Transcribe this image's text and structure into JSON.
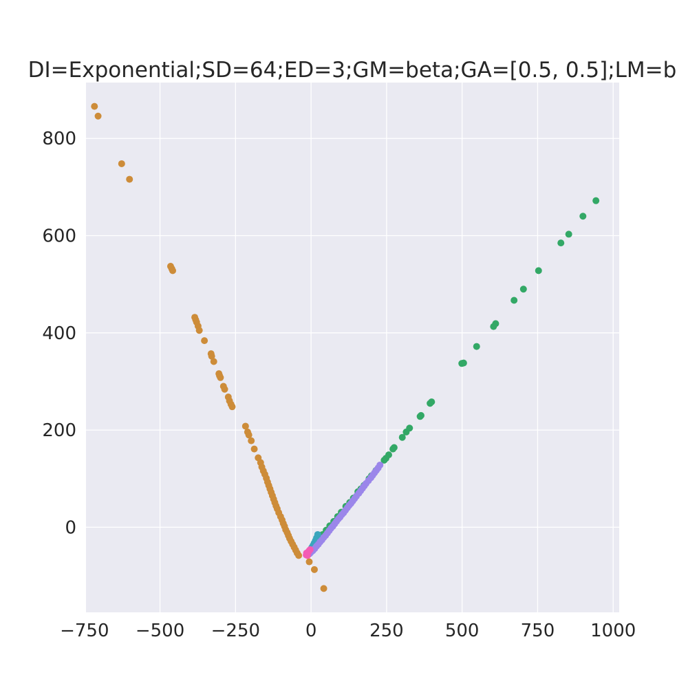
{
  "chart_data": {
    "type": "scatter",
    "title": "DI=Exponential;SD=64;ED=3;GM=beta;GA=[0.5, 0.5];LM=b",
    "xlabel": "",
    "ylabel": "",
    "xlim": [
      -745,
      1020
    ],
    "ylim": [
      -175,
      915
    ],
    "grid": true,
    "background": "#eaeaf2",
    "grid_color": "#ffffff",
    "x_ticks": [
      -750,
      -500,
      -250,
      0,
      250,
      500,
      750,
      1000
    ],
    "x_tick_labels": [
      "−750",
      "−500",
      "−250",
      "0",
      "250",
      "500",
      "750",
      "1000"
    ],
    "y_ticks": [
      0,
      200,
      400,
      600,
      800
    ],
    "y_tick_labels": [
      "0",
      "200",
      "400",
      "600",
      "800"
    ],
    "series": [
      {
        "color": "#cd8c39",
        "points": [
          [
            -717,
            866
          ],
          [
            -705,
            846
          ],
          [
            -627,
            748
          ],
          [
            -601,
            716
          ],
          [
            -465,
            537
          ],
          [
            -461,
            532
          ],
          [
            -458,
            528
          ],
          [
            -385,
            432
          ],
          [
            -382,
            427
          ],
          [
            -379,
            422
          ],
          [
            -374,
            414
          ],
          [
            -370,
            405
          ],
          [
            -353,
            384
          ],
          [
            -331,
            357
          ],
          [
            -329,
            352
          ],
          [
            -322,
            341
          ],
          [
            -305,
            316
          ],
          [
            -303,
            312
          ],
          [
            -300,
            308
          ],
          [
            -290,
            290
          ],
          [
            -286,
            284
          ],
          [
            -274,
            268
          ],
          [
            -270,
            260
          ],
          [
            -265,
            253
          ],
          [
            -261,
            248
          ],
          [
            -217,
            208
          ],
          [
            -210,
            196
          ],
          [
            -206,
            190
          ],
          [
            -198,
            178
          ],
          [
            -188,
            161
          ],
          [
            -175,
            143
          ],
          [
            -167,
            133
          ],
          [
            -163,
            124
          ],
          [
            -158,
            116
          ],
          [
            -153,
            109
          ],
          [
            -148,
            101
          ],
          [
            -144,
            93
          ],
          [
            -140,
            86
          ],
          [
            -136,
            79
          ],
          [
            -132,
            72
          ],
          [
            -128,
            65
          ],
          [
            -124,
            58
          ],
          [
            -120,
            51
          ],
          [
            -116,
            44
          ],
          [
            -112,
            38
          ],
          [
            -107,
            30
          ],
          [
            -101,
            22
          ],
          [
            -96,
            15
          ],
          [
            -92,
            8
          ],
          [
            -88,
            2
          ],
          [
            -84,
            -5
          ],
          [
            -79,
            -11
          ],
          [
            -75,
            -17
          ],
          [
            -71,
            -23
          ],
          [
            -66,
            -29
          ],
          [
            -61,
            -35
          ],
          [
            -56,
            -41
          ],
          [
            -51,
            -47
          ],
          [
            -46,
            -53
          ],
          [
            -41,
            -58
          ],
          [
            -6,
            -71
          ],
          [
            11,
            -87
          ],
          [
            42,
            -126
          ]
        ]
      },
      {
        "color": "#33a866",
        "points": [
          [
            943,
            672
          ],
          [
            900,
            640
          ],
          [
            853,
            603
          ],
          [
            827,
            585
          ],
          [
            753,
            528
          ],
          [
            703,
            490
          ],
          [
            672,
            467
          ],
          [
            611,
            419
          ],
          [
            604,
            413
          ],
          [
            548,
            372
          ],
          [
            505,
            338
          ],
          [
            499,
            337
          ],
          [
            399,
            258
          ],
          [
            394,
            255
          ],
          [
            364,
            230
          ],
          [
            361,
            228
          ],
          [
            326,
            204
          ],
          [
            315,
            196
          ],
          [
            302,
            185
          ],
          [
            275,
            164
          ],
          [
            271,
            161
          ],
          [
            257,
            149
          ],
          [
            248,
            142
          ],
          [
            242,
            138
          ],
          [
            215,
            117
          ],
          [
            200,
            106
          ],
          [
            192,
            100
          ],
          [
            175,
            86
          ],
          [
            165,
            79
          ],
          [
            155,
            73
          ],
          [
            140,
            60
          ],
          [
            128,
            51
          ],
          [
            115,
            43
          ],
          [
            100,
            31
          ],
          [
            88,
            22
          ],
          [
            75,
            12
          ],
          [
            62,
            3
          ],
          [
            50,
            -6
          ],
          [
            38,
            -15
          ],
          [
            25,
            -25
          ],
          [
            12,
            -35
          ],
          [
            0,
            -45
          ]
        ]
      },
      {
        "color": "#3aa6bc",
        "points": [
          [
            22,
            -15
          ],
          [
            18,
            -22
          ],
          [
            14,
            -28
          ],
          [
            10,
            -33
          ],
          [
            6,
            -38
          ],
          [
            2,
            -42
          ],
          [
            -2,
            -46
          ],
          [
            -6,
            -50
          ],
          [
            -10,
            -54
          ],
          [
            -14,
            -57
          ]
        ]
      },
      {
        "color": "#9b86ea",
        "points": [
          [
            228,
            128
          ],
          [
            222,
            122
          ],
          [
            216,
            117
          ],
          [
            210,
            112
          ],
          [
            204,
            107
          ],
          [
            198,
            102
          ],
          [
            190,
            96
          ],
          [
            182,
            90
          ],
          [
            176,
            85
          ],
          [
            170,
            80
          ],
          [
            164,
            75
          ],
          [
            158,
            70
          ],
          [
            150,
            64
          ],
          [
            144,
            59
          ],
          [
            138,
            54
          ],
          [
            132,
            49
          ],
          [
            126,
            45
          ],
          [
            120,
            40
          ],
          [
            114,
            35
          ],
          [
            108,
            30
          ],
          [
            102,
            26
          ],
          [
            96,
            21
          ],
          [
            90,
            17
          ],
          [
            84,
            12
          ],
          [
            78,
            7
          ],
          [
            72,
            2
          ],
          [
            66,
            -2
          ],
          [
            60,
            -7
          ],
          [
            54,
            -12
          ],
          [
            48,
            -17
          ],
          [
            42,
            -21
          ],
          [
            36,
            -26
          ],
          [
            30,
            -30
          ],
          [
            24,
            -35
          ],
          [
            18,
            -39
          ],
          [
            12,
            -44
          ],
          [
            6,
            -48
          ],
          [
            0,
            -51
          ],
          [
            -4,
            -54
          ],
          [
            -8,
            -56
          ]
        ]
      },
      {
        "color": "#f45bb5",
        "points": [
          [
            -3,
            -46
          ],
          [
            -6,
            -48
          ],
          [
            -8,
            -50
          ],
          [
            -10,
            -52
          ],
          [
            -12,
            -54
          ],
          [
            -14,
            -55
          ],
          [
            -15,
            -53
          ],
          [
            -16,
            -57
          ],
          [
            -12,
            -58
          ],
          [
            -9,
            -51
          ]
        ]
      }
    ]
  }
}
